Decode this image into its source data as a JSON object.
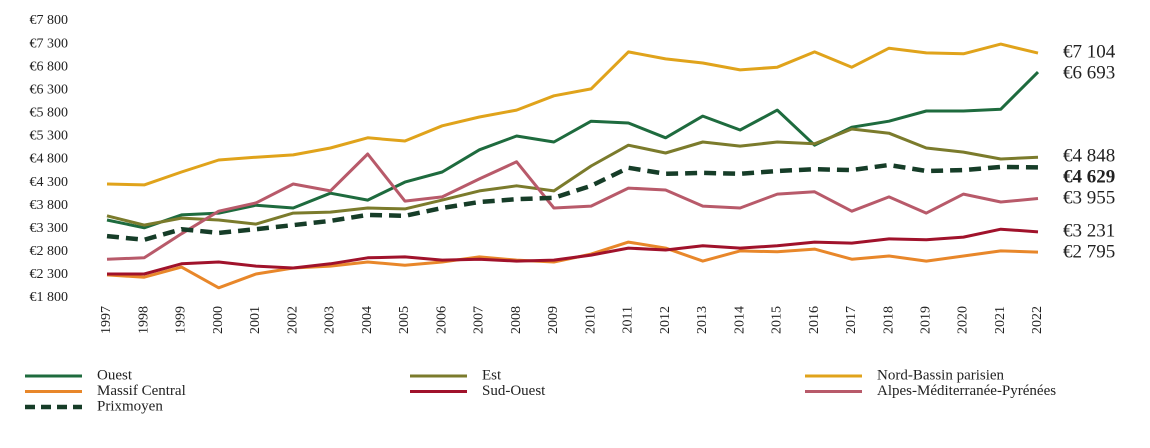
{
  "chart_data": {
    "type": "line",
    "categories": [
      "1997",
      "1998",
      "1999",
      "2000",
      "2001",
      "2002",
      "2003",
      "2004",
      "2005",
      "2006",
      "2007",
      "2008",
      "2009",
      "2010",
      "2011",
      "2012",
      "2013",
      "2014",
      "2015",
      "2016",
      "2017",
      "2018",
      "2019",
      "2020",
      "2021",
      "2022"
    ],
    "ylim": [
      1800,
      7800
    ],
    "yticks": [
      {
        "value": 1800,
        "label": "€1 800"
      },
      {
        "value": 2300,
        "label": "€2 300"
      },
      {
        "value": 2800,
        "label": "€2 800"
      },
      {
        "value": 3300,
        "label": "€3 300"
      },
      {
        "value": 3800,
        "label": "€3 800"
      },
      {
        "value": 4300,
        "label": "€4 300"
      },
      {
        "value": 4800,
        "label": "€4 800"
      },
      {
        "value": 5300,
        "label": "€5 300"
      },
      {
        "value": 5800,
        "label": "€5 800"
      },
      {
        "value": 6300,
        "label": "€6 300"
      },
      {
        "value": 6800,
        "label": "€6 800"
      },
      {
        "value": 7300,
        "label": "€7 300"
      },
      {
        "value": 7800,
        "label": "€7 800"
      }
    ],
    "grid": false,
    "legend": "bottom",
    "series": [
      {
        "name": "Ouest",
        "color": "#1e6b3e",
        "style": "solid",
        "values": [
          3490,
          3320,
          3600,
          3640,
          3810,
          3750,
          4070,
          3920,
          4310,
          4530,
          5010,
          5310,
          5180,
          5630,
          5590,
          5270,
          5740,
          5440,
          5870,
          5110,
          5500,
          5630,
          5850,
          5850,
          5890,
          6693
        ],
        "value_labels": [
          null,
          null,
          null,
          null,
          null,
          null,
          null,
          null,
          null,
          null,
          null,
          null,
          null,
          null,
          null,
          null,
          null,
          null,
          null,
          null,
          null,
          null,
          null,
          null,
          null,
          "€6 693"
        ]
      },
      {
        "name": "Est",
        "color": "#7b7b2c",
        "style": "solid",
        "values": [
          3580,
          3380,
          3530,
          3490,
          3400,
          3640,
          3660,
          3750,
          3730,
          3920,
          4120,
          4230,
          4120,
          4660,
          5110,
          4940,
          5180,
          5090,
          5180,
          5140,
          5460,
          5370,
          5050,
          4960,
          4810,
          4848
        ],
        "value_labels": [
          null,
          null,
          null,
          null,
          null,
          null,
          null,
          null,
          null,
          null,
          null,
          null,
          null,
          null,
          null,
          null,
          null,
          null,
          null,
          null,
          null,
          null,
          null,
          null,
          null,
          "€4 848"
        ]
      },
      {
        "name": "Nord-Bassin parisien",
        "color": "#e0a31b",
        "style": "solid",
        "values": [
          4270,
          4250,
          4530,
          4790,
          4850,
          4900,
          5050,
          5270,
          5200,
          5530,
          5720,
          5870,
          6180,
          6330,
          7130,
          6980,
          6890,
          6740,
          6800,
          7130,
          6800,
          7210,
          7110,
          7090,
          7300,
          7104
        ],
        "value_labels": [
          null,
          null,
          null,
          null,
          null,
          null,
          null,
          null,
          null,
          null,
          null,
          null,
          null,
          null,
          null,
          null,
          null,
          null,
          null,
          null,
          null,
          null,
          null,
          null,
          null,
          "€7 104"
        ]
      },
      {
        "name": "Massif Central",
        "color": "#e8872a",
        "style": "solid",
        "values": [
          2300,
          2250,
          2470,
          2020,
          2320,
          2450,
          2490,
          2580,
          2510,
          2580,
          2690,
          2620,
          2580,
          2750,
          3010,
          2880,
          2600,
          2820,
          2800,
          2860,
          2640,
          2710,
          2600,
          2710,
          2820,
          2795
        ],
        "value_labels": [
          null,
          null,
          null,
          null,
          null,
          null,
          null,
          null,
          null,
          null,
          null,
          null,
          null,
          null,
          null,
          null,
          null,
          null,
          null,
          null,
          null,
          null,
          null,
          null,
          null,
          "€2 795"
        ]
      },
      {
        "name": "Sud-Ouest",
        "color": "#a0122b",
        "style": "solid",
        "values": [
          2320,
          2320,
          2540,
          2580,
          2490,
          2450,
          2540,
          2670,
          2690,
          2620,
          2640,
          2600,
          2620,
          2730,
          2880,
          2840,
          2930,
          2880,
          2930,
          3010,
          2990,
          3080,
          3060,
          3120,
          3290,
          3231
        ],
        "value_labels": [
          null,
          null,
          null,
          null,
          null,
          null,
          null,
          null,
          null,
          null,
          null,
          null,
          null,
          null,
          null,
          null,
          null,
          null,
          null,
          null,
          null,
          null,
          null,
          null,
          null,
          "€3 231"
        ]
      },
      {
        "name": "Alpes-Méditerranée-Pyrénées",
        "color": "#b85a6a",
        "style": "solid",
        "values": [
          2640,
          2670,
          3190,
          3680,
          3860,
          4270,
          4120,
          4920,
          3900,
          3990,
          4380,
          4750,
          3750,
          3790,
          4180,
          4140,
          3790,
          3750,
          4050,
          4100,
          3680,
          3990,
          3640,
          4050,
          3880,
          3955
        ],
        "value_labels": [
          null,
          null,
          null,
          null,
          null,
          null,
          null,
          null,
          null,
          null,
          null,
          null,
          null,
          null,
          null,
          null,
          null,
          null,
          null,
          null,
          null,
          null,
          null,
          null,
          null,
          "€3 955"
        ]
      },
      {
        "name": "Prixmoyen",
        "color": "#163d28",
        "style": "dashed",
        "values": [
          3140,
          3060,
          3290,
          3210,
          3290,
          3380,
          3470,
          3600,
          3580,
          3750,
          3880,
          3940,
          3970,
          4230,
          4620,
          4490,
          4510,
          4490,
          4550,
          4590,
          4570,
          4680,
          4550,
          4570,
          4640,
          4629
        ],
        "value_labels": [
          null,
          null,
          null,
          null,
          null,
          null,
          null,
          null,
          null,
          null,
          null,
          null,
          null,
          null,
          null,
          null,
          null,
          null,
          null,
          null,
          null,
          null,
          null,
          null,
          null,
          "€4 629"
        ]
      }
    ]
  }
}
